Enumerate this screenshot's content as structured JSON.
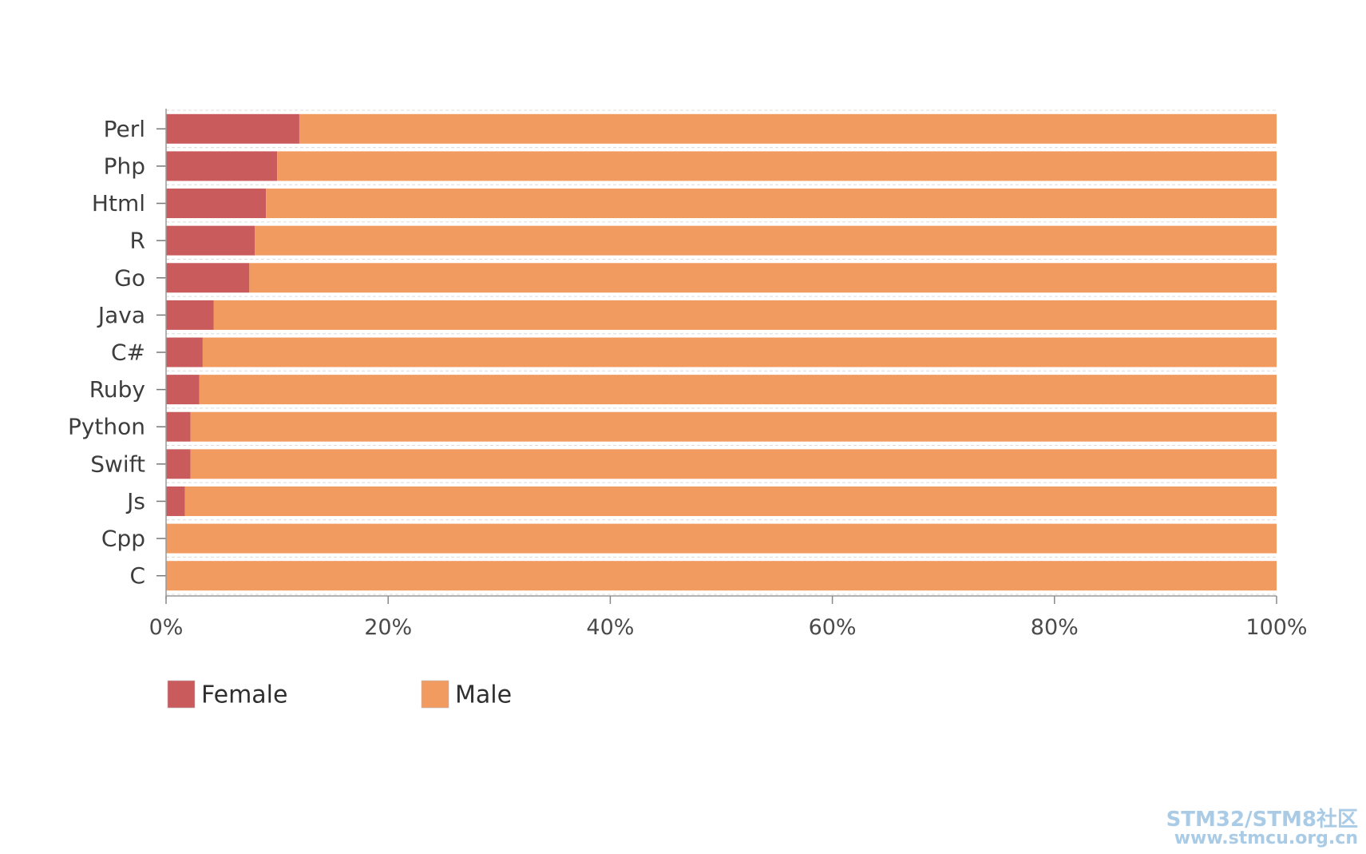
{
  "chart_data": {
    "type": "bar",
    "orientation": "horizontal",
    "stacked": true,
    "categories": [
      "Perl",
      "Php",
      "Html",
      "R",
      "Go",
      "Java",
      "C#",
      "Ruby",
      "Python",
      "Swift",
      "Js",
      "Cpp",
      "C"
    ],
    "series": [
      {
        "name": "Female",
        "color": "#c95b5d",
        "values": [
          12,
          10,
          9,
          8,
          7.5,
          4.3,
          3.3,
          3,
          2.2,
          2.2,
          1.7,
          0,
          0
        ]
      },
      {
        "name": "Male",
        "color": "#f29b61",
        "values": [
          88,
          90,
          91,
          92,
          92.5,
          95.7,
          96.7,
          97,
          97.8,
          97.8,
          98.3,
          100,
          100
        ]
      }
    ],
    "xlim": [
      0,
      100
    ],
    "xticks": [
      0,
      20,
      40,
      60,
      80,
      100
    ],
    "xtick_labels": [
      "0%",
      "20%",
      "40%",
      "60%",
      "80%",
      "100%"
    ],
    "grid": true,
    "legend_position": "bottom-left"
  },
  "watermark": {
    "line1": "STM32/STM8社区",
    "line2": "www.stmcu.org.cn"
  }
}
